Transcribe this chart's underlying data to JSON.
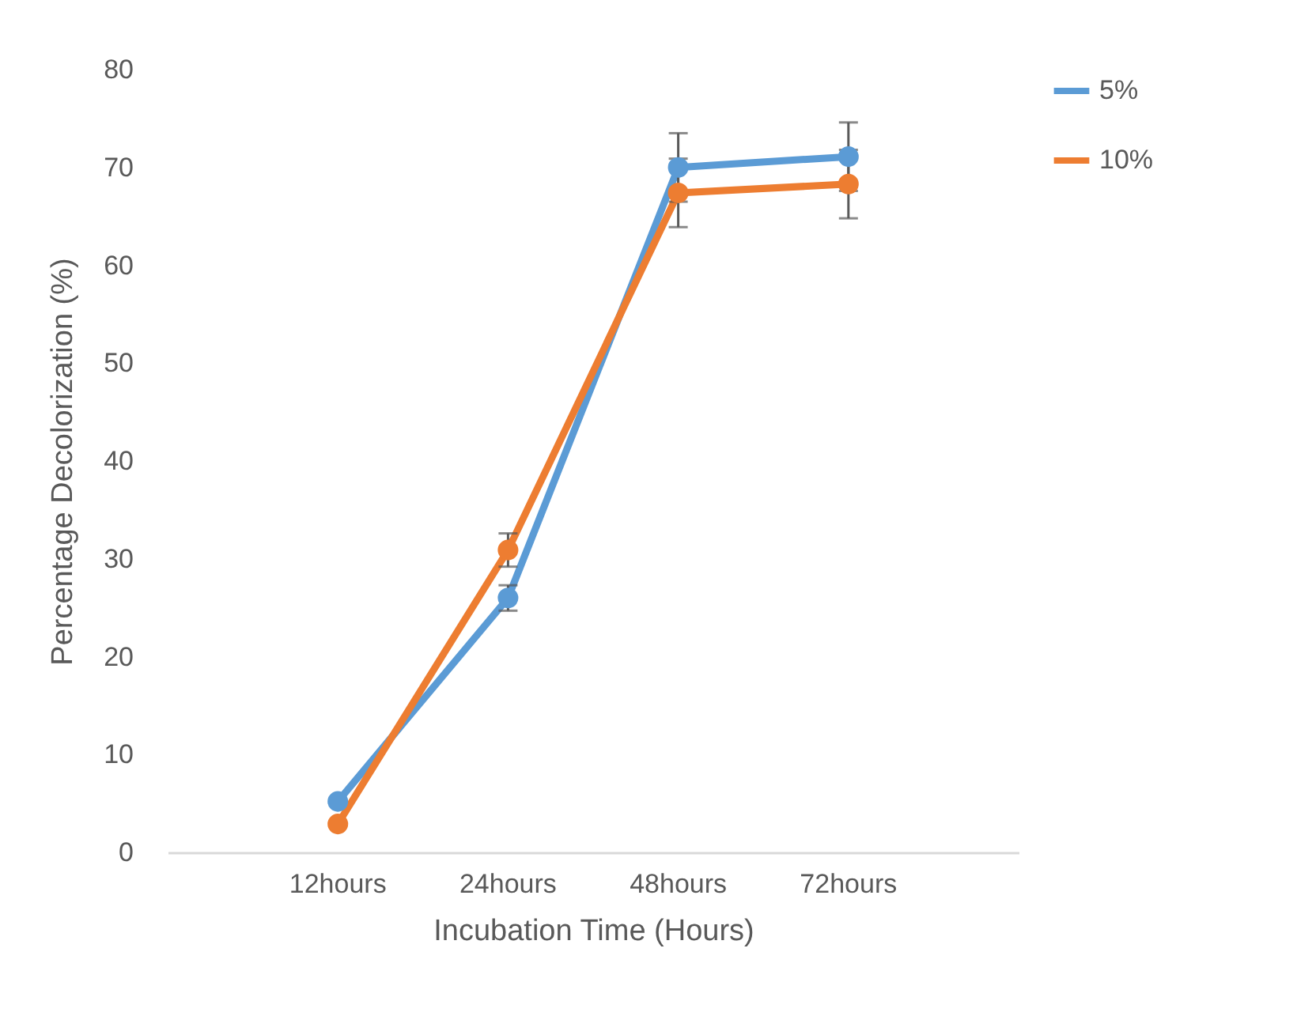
{
  "chart_data": {
    "type": "line",
    "xlabel": "Incubation Time (Hours)",
    "ylabel": "Percentage Decolorization (%)",
    "categories": [
      "12hours",
      "24hours",
      "48hours",
      "72hours"
    ],
    "series": [
      {
        "name": "5%",
        "color": "#5b9bd5",
        "values": [
          5.2,
          26,
          70,
          71.1
        ],
        "errors": [
          null,
          1.3,
          3.5,
          3.5
        ]
      },
      {
        "name": "10%",
        "color": "#ed7d31",
        "values": [
          2.9,
          30.9,
          67.4,
          68.3
        ],
        "errors": [
          null,
          1.7,
          3.5,
          3.5
        ]
      }
    ],
    "ylim": [
      0,
      80
    ],
    "yticks": [
      0,
      10,
      20,
      30,
      40,
      50,
      60,
      70,
      80
    ],
    "grid": false,
    "legend": "right",
    "marker": "circle",
    "line_style": "solid"
  }
}
